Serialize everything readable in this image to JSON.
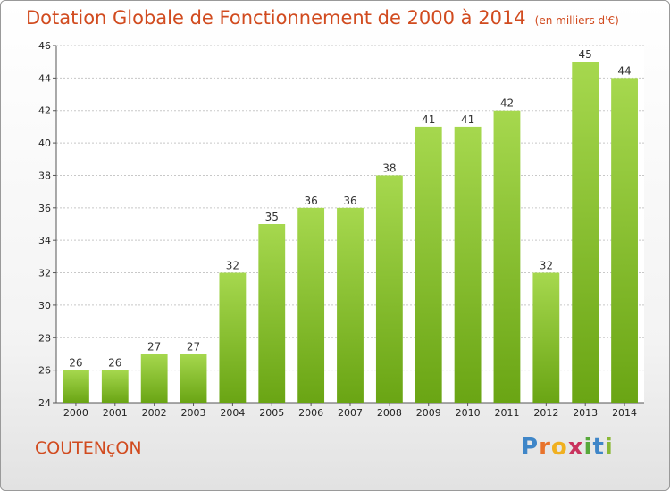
{
  "chart_data": {
    "type": "bar",
    "title": "Dotation Globale de Fonctionnement de 2000 à 2014",
    "subtitle": "(en milliers d'€)",
    "categories": [
      "2000",
      "2001",
      "2002",
      "2003",
      "2004",
      "2005",
      "2006",
      "2007",
      "2008",
      "2009",
      "2010",
      "2011",
      "2012",
      "2013",
      "2014"
    ],
    "values": [
      26,
      26,
      27,
      27,
      32,
      35,
      36,
      36,
      38,
      41,
      41,
      42,
      32,
      45,
      44
    ],
    "xlabel": "",
    "ylabel": "",
    "ylim": [
      24,
      46
    ],
    "yticks": [
      24,
      26,
      28,
      30,
      32,
      34,
      36,
      38,
      40,
      42,
      44,
      46
    ],
    "grid": true,
    "bar_color_light": "#a6d84e",
    "bar_color_dark": "#6aa514"
  },
  "footer": {
    "commune": "COUTENçON",
    "logo": [
      "P",
      "r",
      "o",
      "x",
      "i",
      "t",
      "i"
    ]
  },
  "colors": {
    "title": "#d14b1f",
    "logo": [
      "#3f86c8",
      "#e8732c",
      "#f0b020",
      "#c9335e",
      "#57a83a",
      "#3f86c8",
      "#8ab834"
    ]
  }
}
